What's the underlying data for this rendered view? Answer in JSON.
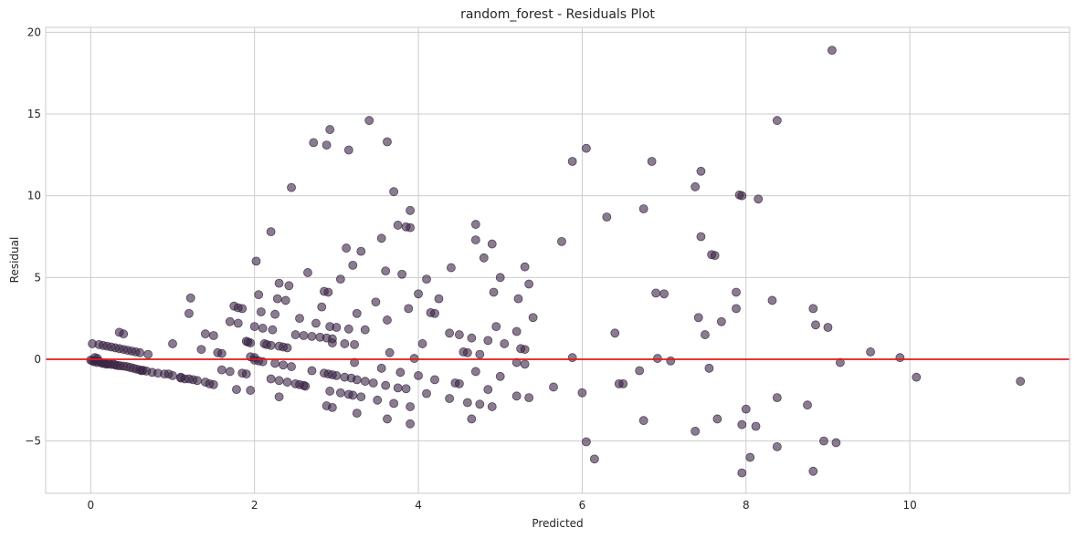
{
  "chart_data": {
    "type": "scatter",
    "title": "random_forest - Residuals Plot",
    "xlabel": "Predicted",
    "ylabel": "Residual",
    "xlim": [
      -0.55,
      11.95
    ],
    "ylim": [
      -8.2,
      20.3
    ],
    "xticks": [
      0,
      2,
      4,
      6,
      8,
      10
    ],
    "xtick_labels": [
      "0",
      "2",
      "4",
      "6",
      "8",
      "10"
    ],
    "yticks": [
      -5,
      0,
      5,
      10,
      15,
      20
    ],
    "ytick_labels": [
      "−5",
      "0",
      "5",
      "10",
      "15",
      "20"
    ],
    "grid": true,
    "reference_line": {
      "y": 0,
      "color": "#e31a1c"
    },
    "point_color": "#3b2545",
    "point_alpha": 0.6,
    "series": [
      {
        "points": [
          [
            0.0,
            -0.05
          ],
          [
            0.02,
            -0.1
          ],
          [
            0.04,
            -0.15
          ],
          [
            0.06,
            -0.08
          ],
          [
            0.08,
            -0.2
          ],
          [
            0.1,
            -0.12
          ],
          [
            0.12,
            -0.18
          ],
          [
            0.14,
            -0.25
          ],
          [
            0.16,
            -0.22
          ],
          [
            0.18,
            -0.28
          ],
          [
            0.2,
            -0.3
          ],
          [
            0.22,
            -0.26
          ],
          [
            0.25,
            -0.32
          ],
          [
            0.28,
            -0.3
          ],
          [
            0.3,
            -0.35
          ],
          [
            0.33,
            -0.38
          ],
          [
            0.36,
            -0.4
          ],
          [
            0.4,
            -0.42
          ],
          [
            0.44,
            -0.45
          ],
          [
            0.48,
            -0.5
          ],
          [
            0.52,
            -0.55
          ],
          [
            0.56,
            -0.6
          ],
          [
            0.6,
            -0.65
          ],
          [
            0.64,
            -0.68
          ],
          [
            0.68,
            -0.72
          ],
          [
            0.75,
            -0.8
          ],
          [
            0.82,
            -0.85
          ],
          [
            0.9,
            -0.9
          ],
          [
            1.0,
            -1.0
          ],
          [
            1.1,
            -1.1
          ],
          [
            1.2,
            -1.2
          ],
          [
            1.3,
            -1.3
          ],
          [
            1.4,
            -1.4
          ],
          [
            1.5,
            -1.55
          ],
          [
            0.05,
            0.1
          ],
          [
            0.08,
            0.05
          ],
          [
            0.02,
            0.95
          ],
          [
            0.1,
            0.9
          ],
          [
            0.15,
            0.85
          ],
          [
            0.2,
            0.8
          ],
          [
            0.25,
            0.75
          ],
          [
            0.3,
            0.7
          ],
          [
            0.35,
            0.65
          ],
          [
            0.4,
            0.6
          ],
          [
            0.45,
            0.55
          ],
          [
            0.5,
            0.5
          ],
          [
            0.55,
            0.45
          ],
          [
            0.6,
            0.4
          ],
          [
            0.7,
            0.3
          ],
          [
            0.35,
            1.65
          ],
          [
            0.4,
            1.55
          ],
          [
            1.0,
            0.95
          ],
          [
            1.2,
            2.8
          ],
          [
            1.22,
            3.75
          ],
          [
            1.35,
            0.6
          ],
          [
            1.4,
            1.55
          ],
          [
            1.5,
            1.45
          ],
          [
            1.55,
            0.4
          ],
          [
            1.6,
            0.35
          ],
          [
            1.7,
            2.3
          ],
          [
            1.75,
            3.25
          ],
          [
            1.8,
            3.15
          ],
          [
            1.8,
            2.2
          ],
          [
            1.85,
            3.1
          ],
          [
            1.9,
            1.1
          ],
          [
            1.92,
            1.05
          ],
          [
            1.95,
            1.0
          ],
          [
            1.95,
            0.15
          ],
          [
            2.0,
            0.1
          ],
          [
            2.0,
            2.0
          ],
          [
            2.02,
            6.0
          ],
          [
            2.05,
            3.95
          ],
          [
            2.08,
            2.9
          ],
          [
            2.1,
            1.9
          ],
          [
            2.12,
            0.95
          ],
          [
            2.15,
            0.9
          ],
          [
            2.2,
            0.85
          ],
          [
            2.22,
            1.8
          ],
          [
            2.25,
            2.75
          ],
          [
            2.28,
            3.7
          ],
          [
            2.3,
            0.8
          ],
          [
            2.3,
            4.65
          ],
          [
            2.35,
            0.75
          ],
          [
            2.38,
            3.6
          ],
          [
            2.4,
            0.7
          ],
          [
            2.42,
            4.5
          ],
          [
            2.45,
            10.5
          ],
          [
            2.5,
            1.5
          ],
          [
            2.55,
            2.5
          ],
          [
            2.6,
            1.45
          ],
          [
            2.65,
            5.3
          ],
          [
            2.7,
            1.4
          ],
          [
            2.75,
            2.2
          ],
          [
            2.8,
            1.35
          ],
          [
            2.82,
            3.2
          ],
          [
            2.85,
            4.15
          ],
          [
            2.88,
            1.3
          ],
          [
            2.9,
            4.1
          ],
          [
            2.92,
            2.0
          ],
          [
            2.95,
            1.25
          ],
          [
            2.95,
            1.0
          ],
          [
            3.0,
            1.95
          ],
          [
            3.05,
            4.9
          ],
          [
            3.1,
            0.95
          ],
          [
            3.12,
            6.8
          ],
          [
            3.15,
            1.85
          ],
          [
            3.2,
            5.75
          ],
          [
            3.22,
            0.9
          ],
          [
            3.25,
            2.8
          ],
          [
            3.3,
            6.6
          ],
          [
            3.35,
            1.8
          ],
          [
            3.4,
            14.6
          ],
          [
            3.48,
            3.5
          ],
          [
            3.55,
            7.4
          ],
          [
            3.6,
            5.4
          ],
          [
            3.62,
            2.4
          ],
          [
            3.65,
            0.4
          ],
          [
            3.7,
            10.25
          ],
          [
            3.75,
            8.2
          ],
          [
            3.8,
            5.2
          ],
          [
            3.85,
            8.1
          ],
          [
            3.88,
            3.1
          ],
          [
            3.9,
            9.1
          ],
          [
            3.9,
            8.05
          ],
          [
            3.95,
            0.05
          ],
          [
            4.0,
            4.0
          ],
          [
            4.05,
            0.95
          ],
          [
            4.1,
            4.9
          ],
          [
            4.15,
            2.85
          ],
          [
            4.2,
            2.8
          ],
          [
            4.25,
            3.7
          ],
          [
            4.38,
            1.6
          ],
          [
            4.4,
            5.6
          ],
          [
            4.5,
            1.5
          ],
          [
            4.55,
            0.45
          ],
          [
            4.6,
            0.4
          ],
          [
            4.65,
            1.3
          ],
          [
            4.7,
            8.25
          ],
          [
            4.7,
            7.3
          ],
          [
            4.75,
            0.3
          ],
          [
            4.8,
            6.2
          ],
          [
            4.85,
            1.15
          ],
          [
            4.9,
            7.05
          ],
          [
            4.92,
            4.1
          ],
          [
            4.95,
            2.0
          ],
          [
            5.0,
            5.0
          ],
          [
            5.05,
            0.95
          ],
          [
            5.2,
            1.7
          ],
          [
            5.22,
            3.7
          ],
          [
            5.25,
            0.65
          ],
          [
            5.3,
            5.65
          ],
          [
            5.35,
            4.6
          ],
          [
            5.4,
            2.55
          ],
          [
            5.3,
            0.6
          ],
          [
            5.75,
            7.2
          ],
          [
            5.88,
            12.1
          ],
          [
            5.88,
            0.1
          ],
          [
            6.05,
            12.9
          ],
          [
            6.3,
            8.7
          ],
          [
            6.4,
            1.6
          ],
          [
            6.75,
            9.2
          ],
          [
            6.85,
            12.1
          ],
          [
            6.9,
            4.05
          ],
          [
            6.92,
            0.05
          ],
          [
            7.0,
            4.0
          ],
          [
            7.08,
            -0.1
          ],
          [
            7.38,
            10.55
          ],
          [
            7.42,
            2.55
          ],
          [
            7.45,
            11.5
          ],
          [
            7.45,
            7.5
          ],
          [
            7.5,
            1.5
          ],
          [
            7.58,
            6.4
          ],
          [
            7.62,
            6.35
          ],
          [
            7.7,
            2.3
          ],
          [
            7.88,
            4.1
          ],
          [
            7.88,
            3.1
          ],
          [
            7.92,
            10.05
          ],
          [
            7.95,
            10.0
          ],
          [
            8.15,
            9.8
          ],
          [
            8.32,
            3.6
          ],
          [
            8.38,
            14.6
          ],
          [
            8.82,
            3.1
          ],
          [
            8.85,
            2.1
          ],
          [
            9.0,
            1.95
          ],
          [
            9.05,
            18.9
          ],
          [
            9.15,
            -0.2
          ],
          [
            9.52,
            0.45
          ],
          [
            9.88,
            0.1
          ],
          [
            2.72,
            13.25
          ],
          [
            2.88,
            13.1
          ],
          [
            2.92,
            14.05
          ],
          [
            3.15,
            12.8
          ],
          [
            3.62,
            13.3
          ],
          [
            2.2,
            7.8
          ],
          [
            1.78,
            -1.85
          ],
          [
            1.9,
            -0.9
          ],
          [
            1.95,
            -1.9
          ],
          [
            2.0,
            -0.05
          ],
          [
            2.05,
            -0.1
          ],
          [
            2.1,
            -0.15
          ],
          [
            2.2,
            -1.2
          ],
          [
            2.25,
            -0.25
          ],
          [
            2.3,
            -1.3
          ],
          [
            2.3,
            -2.3
          ],
          [
            2.35,
            -0.35
          ],
          [
            2.4,
            -1.4
          ],
          [
            2.45,
            -0.45
          ],
          [
            2.5,
            -1.5
          ],
          [
            2.55,
            -1.55
          ],
          [
            2.6,
            -1.6
          ],
          [
            2.62,
            -1.65
          ],
          [
            2.7,
            -0.7
          ],
          [
            2.85,
            -0.85
          ],
          [
            2.88,
            -2.85
          ],
          [
            2.9,
            -0.9
          ],
          [
            2.92,
            -1.95
          ],
          [
            2.95,
            -2.95
          ],
          [
            2.95,
            -0.95
          ],
          [
            3.0,
            -1.0
          ],
          [
            3.05,
            -2.05
          ],
          [
            3.1,
            -1.1
          ],
          [
            3.15,
            -2.15
          ],
          [
            3.18,
            -1.15
          ],
          [
            3.2,
            -2.2
          ],
          [
            3.22,
            -0.2
          ],
          [
            3.25,
            -3.3
          ],
          [
            3.25,
            -1.25
          ],
          [
            3.3,
            -2.3
          ],
          [
            3.35,
            -1.35
          ],
          [
            3.45,
            -1.45
          ],
          [
            3.5,
            -2.5
          ],
          [
            3.55,
            -0.55
          ],
          [
            3.6,
            -1.6
          ],
          [
            3.62,
            -3.65
          ],
          [
            3.7,
            -2.7
          ],
          [
            3.75,
            -1.75
          ],
          [
            3.78,
            -0.8
          ],
          [
            3.85,
            -1.8
          ],
          [
            3.9,
            -2.9
          ],
          [
            3.9,
            -3.95
          ],
          [
            4.0,
            -1.0
          ],
          [
            4.1,
            -2.1
          ],
          [
            4.2,
            -1.25
          ],
          [
            4.38,
            -2.4
          ],
          [
            4.45,
            -1.45
          ],
          [
            4.5,
            -1.5
          ],
          [
            4.6,
            -2.65
          ],
          [
            4.65,
            -3.65
          ],
          [
            4.7,
            -0.75
          ],
          [
            4.75,
            -2.75
          ],
          [
            4.85,
            -1.85
          ],
          [
            4.9,
            -2.9
          ],
          [
            5.0,
            -1.05
          ],
          [
            5.2,
            -0.2
          ],
          [
            5.2,
            -2.25
          ],
          [
            5.3,
            -0.3
          ],
          [
            5.35,
            -2.35
          ],
          [
            5.65,
            -1.7
          ],
          [
            6.0,
            -2.05
          ],
          [
            6.05,
            -5.05
          ],
          [
            6.15,
            -6.1
          ],
          [
            6.45,
            -1.5
          ],
          [
            6.5,
            -1.5
          ],
          [
            6.7,
            -0.7
          ],
          [
            6.75,
            -3.75
          ],
          [
            7.38,
            -4.4
          ],
          [
            7.55,
            -0.55
          ],
          [
            7.65,
            -3.65
          ],
          [
            7.95,
            -6.95
          ],
          [
            7.95,
            -4.0
          ],
          [
            8.0,
            -3.05
          ],
          [
            8.05,
            -6.0
          ],
          [
            8.12,
            -4.1
          ],
          [
            8.38,
            -5.35
          ],
          [
            8.38,
            -2.35
          ],
          [
            8.75,
            -2.8
          ],
          [
            8.82,
            -6.85
          ],
          [
            8.95,
            -5.0
          ],
          [
            9.1,
            -5.1
          ],
          [
            10.08,
            -1.1
          ],
          [
            11.35,
            -1.35
          ],
          [
            0.95,
            -0.9
          ],
          [
            1.1,
            -1.15
          ],
          [
            1.15,
            -1.2
          ],
          [
            1.25,
            -1.25
          ],
          [
            1.45,
            -1.5
          ],
          [
            1.6,
            -0.65
          ],
          [
            1.7,
            -0.75
          ],
          [
            1.85,
            -0.85
          ],
          [
            0.62,
            -0.7
          ]
        ]
      }
    ]
  }
}
